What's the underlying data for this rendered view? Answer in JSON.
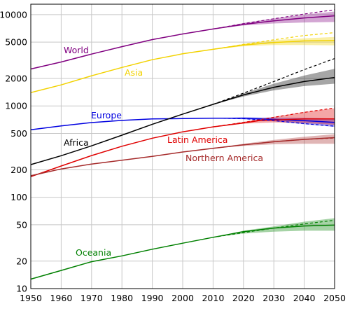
{
  "chart_data": {
    "type": "line",
    "title": "",
    "xlabel": "",
    "ylabel": "",
    "yscale": "log",
    "xlim": [
      1950,
      2050
    ],
    "ylim": [
      10,
      13000
    ],
    "grid": true,
    "x_ticks": [
      1950,
      1960,
      1970,
      1980,
      1990,
      2000,
      2010,
      2020,
      2030,
      2040,
      2050
    ],
    "y_ticks": [
      10,
      20,
      50,
      100,
      200,
      500,
      1000,
      2000,
      5000,
      10000
    ],
    "series": [
      {
        "name": "World",
        "color": "#800080",
        "points": [
          [
            1950,
            2540
          ],
          [
            1960,
            3030
          ],
          [
            1970,
            3700
          ],
          [
            1980,
            4460
          ],
          [
            1990,
            5330
          ],
          [
            2000,
            6140
          ],
          [
            2010,
            6960
          ],
          [
            2020,
            7800
          ],
          [
            2030,
            8550
          ],
          [
            2040,
            9200
          ],
          [
            2050,
            9700
          ]
        ],
        "projection_high": [
          [
            2010,
            6960
          ],
          [
            2020,
            7950
          ],
          [
            2030,
            9000
          ],
          [
            2040,
            10150
          ],
          [
            2050,
            11300
          ]
        ],
        "band": [
          [
            2010,
            6960,
            6960
          ],
          [
            2020,
            7600,
            8100
          ],
          [
            2030,
            8000,
            9100
          ],
          [
            2040,
            8200,
            10000
          ],
          [
            2050,
            8300,
            10800
          ]
        ]
      },
      {
        "name": "Asia",
        "color": "#f2d200",
        "points": [
          [
            1950,
            1400
          ],
          [
            1960,
            1700
          ],
          [
            1970,
            2140
          ],
          [
            1980,
            2640
          ],
          [
            1990,
            3210
          ],
          [
            2000,
            3720
          ],
          [
            2010,
            4170
          ],
          [
            2020,
            4640
          ],
          [
            2030,
            4950
          ],
          [
            2040,
            5150
          ],
          [
            2050,
            5200
          ]
        ],
        "projection_high": [
          [
            2010,
            4170
          ],
          [
            2020,
            4700
          ],
          [
            2030,
            5300
          ],
          [
            2040,
            5900
          ],
          [
            2050,
            6350
          ]
        ],
        "band": [
          [
            2010,
            4170,
            4170
          ],
          [
            2020,
            4500,
            4800
          ],
          [
            2030,
            4650,
            5250
          ],
          [
            2040,
            4650,
            5500
          ],
          [
            2050,
            4600,
            5700
          ]
        ]
      },
      {
        "name": "Europe",
        "color": "#0000e0",
        "points": [
          [
            1950,
            549
          ],
          [
            1960,
            605
          ],
          [
            1970,
            657
          ],
          [
            1980,
            694
          ],
          [
            1990,
            721
          ],
          [
            2000,
            727
          ],
          [
            2010,
            735
          ],
          [
            2020,
            733
          ],
          [
            2030,
            712
          ],
          [
            2040,
            690
          ],
          [
            2050,
            660
          ]
        ],
        "projection_low": [
          [
            2010,
            735
          ],
          [
            2020,
            725
          ],
          [
            2030,
            690
          ],
          [
            2040,
            640
          ],
          [
            2050,
            600
          ]
        ],
        "band": [
          [
            2010,
            735,
            735
          ],
          [
            2020,
            715,
            750
          ],
          [
            2030,
            680,
            745
          ],
          [
            2040,
            630,
            740
          ],
          [
            2050,
            590,
            730
          ]
        ]
      },
      {
        "name": "Africa",
        "color": "#000000",
        "points": [
          [
            1950,
            228
          ],
          [
            1960,
            285
          ],
          [
            1970,
            366
          ],
          [
            1980,
            478
          ],
          [
            1990,
            630
          ],
          [
            2000,
            814
          ],
          [
            2010,
            1040
          ],
          [
            2020,
            1320
          ],
          [
            2030,
            1600
          ],
          [
            2040,
            1850
          ],
          [
            2050,
            2050
          ]
        ],
        "projection_high": [
          [
            2010,
            1040
          ],
          [
            2020,
            1380
          ],
          [
            2030,
            1850
          ],
          [
            2040,
            2500
          ],
          [
            2050,
            3300
          ]
        ],
        "band": [
          [
            2010,
            1040,
            1040
          ],
          [
            2020,
            1270,
            1370
          ],
          [
            2030,
            1480,
            1750
          ],
          [
            2040,
            1650,
            2150
          ],
          [
            2050,
            1750,
            2550
          ]
        ]
      },
      {
        "name": "Latin America",
        "color": "#e00000",
        "points": [
          [
            1950,
            168
          ],
          [
            1960,
            220
          ],
          [
            1970,
            286
          ],
          [
            1980,
            362
          ],
          [
            1990,
            443
          ],
          [
            2000,
            521
          ],
          [
            2010,
            590
          ],
          [
            2020,
            650
          ],
          [
            2025,
            690
          ],
          [
            2030,
            700
          ],
          [
            2040,
            720
          ],
          [
            2050,
            720
          ]
        ],
        "projection_high": [
          [
            2010,
            590
          ],
          [
            2020,
            660
          ],
          [
            2030,
            750
          ],
          [
            2040,
            850
          ],
          [
            2050,
            950
          ]
        ],
        "band": [
          [
            2010,
            590,
            590
          ],
          [
            2020,
            640,
            670
          ],
          [
            2030,
            660,
            760
          ],
          [
            2040,
            650,
            860
          ],
          [
            2050,
            620,
            940
          ]
        ]
      },
      {
        "name": "Northern America",
        "color": "#a52a2a",
        "points": [
          [
            1950,
            172
          ],
          [
            1960,
            204
          ],
          [
            1970,
            231
          ],
          [
            1980,
            254
          ],
          [
            1990,
            280
          ],
          [
            2000,
            313
          ],
          [
            2010,
            344
          ],
          [
            2020,
            375
          ],
          [
            2030,
            405
          ],
          [
            2040,
            430
          ],
          [
            2050,
            450
          ]
        ],
        "projection_high": [
          [
            2010,
            344
          ],
          [
            2020,
            375
          ],
          [
            2030,
            405
          ],
          [
            2040,
            430
          ],
          [
            2050,
            445
          ]
        ],
        "band": [
          [
            2010,
            344,
            344
          ],
          [
            2020,
            365,
            385
          ],
          [
            2030,
            380,
            425
          ],
          [
            2040,
            385,
            460
          ],
          [
            2050,
            385,
            490
          ]
        ]
      },
      {
        "name": "Oceania",
        "color": "#008000",
        "points": [
          [
            1950,
            12.7
          ],
          [
            1960,
            15.8
          ],
          [
            1970,
            19.7
          ],
          [
            1980,
            22.8
          ],
          [
            1990,
            27.0
          ],
          [
            2000,
            31.4
          ],
          [
            2010,
            36.4
          ],
          [
            2020,
            42.0
          ],
          [
            2030,
            46.0
          ],
          [
            2040,
            48.5
          ],
          [
            2050,
            49.5
          ]
        ],
        "projection_high": [
          [
            2010,
            36.4
          ],
          [
            2020,
            41.0
          ],
          [
            2030,
            46.0
          ],
          [
            2040,
            51.0
          ],
          [
            2050,
            56.0
          ]
        ],
        "band": [
          [
            2010,
            36.4,
            36.4
          ],
          [
            2020,
            40.0,
            43.0
          ],
          [
            2030,
            42.0,
            48.0
          ],
          [
            2040,
            43.0,
            54.0
          ],
          [
            2050,
            43.0,
            59.0
          ]
        ]
      }
    ]
  },
  "labels": [
    {
      "text": "World"
    },
    {
      "text": "Asia"
    },
    {
      "text": "Europe"
    },
    {
      "text": "Africa"
    },
    {
      "text": "Latin America"
    },
    {
      "text": "Northern America"
    },
    {
      "text": "Oceania"
    }
  ]
}
